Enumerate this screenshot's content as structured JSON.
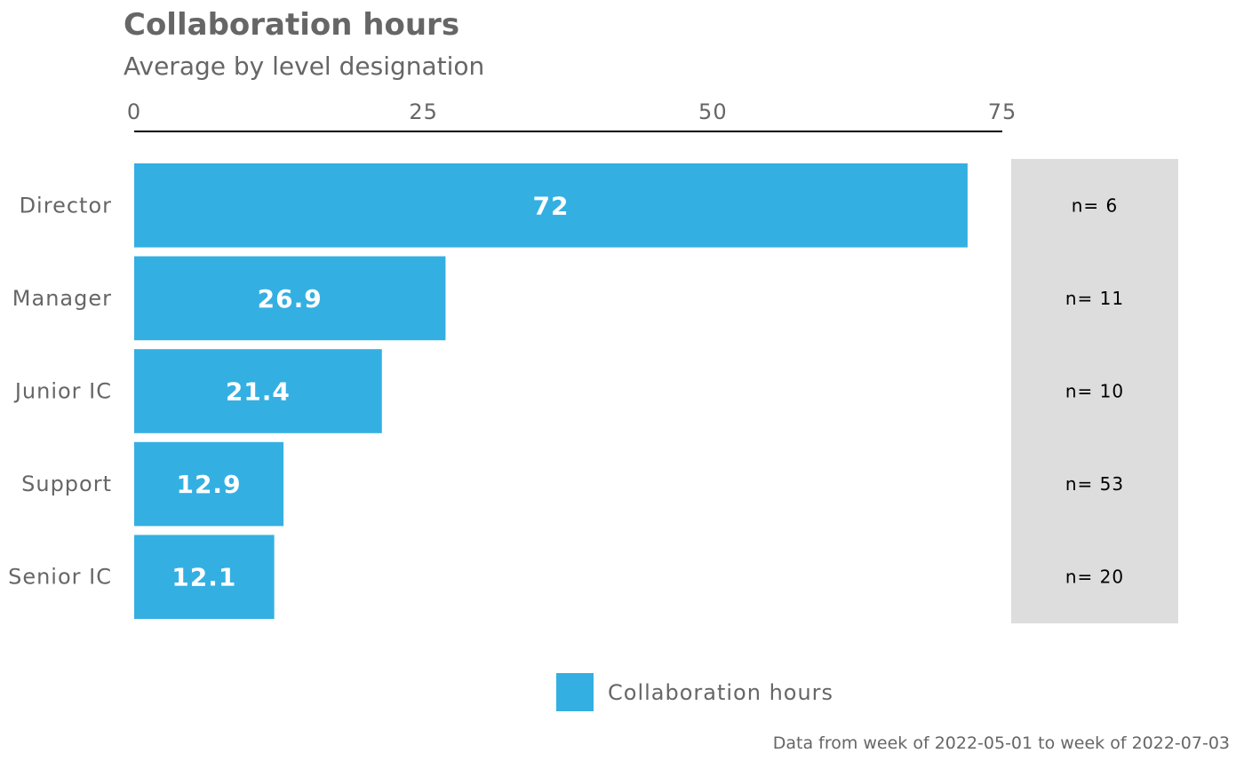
{
  "title": "Collaboration hours",
  "subtitle": "Average by level designation",
  "caption": "Data from week of 2022-05-01 to week of 2022-07-03",
  "colors": {
    "bar": "#34AFE2",
    "side_panel": "#DDDDDD",
    "text": "#666666",
    "bar_label": "#FFFFFF"
  },
  "legend": {
    "label": "Collaboration hours",
    "position": "bottom"
  },
  "chart_data": {
    "type": "bar",
    "orientation": "horizontal",
    "categories": [
      "Director",
      "Manager",
      "Junior IC",
      "Support",
      "Senior IC"
    ],
    "series": [
      {
        "name": "Collaboration hours",
        "values": [
          72,
          26.9,
          21.4,
          12.9,
          12.1
        ]
      }
    ],
    "value_labels": [
      "72",
      "26.9",
      "21.4",
      "12.9",
      "12.1"
    ],
    "counts": [
      "n= 6",
      "n= 11",
      "n= 10",
      "n= 53",
      "n= 20"
    ],
    "xlim": [
      0,
      75
    ],
    "x_ticks": [
      0,
      25,
      50,
      75
    ],
    "x_axis_position": "top",
    "grid": false
  }
}
